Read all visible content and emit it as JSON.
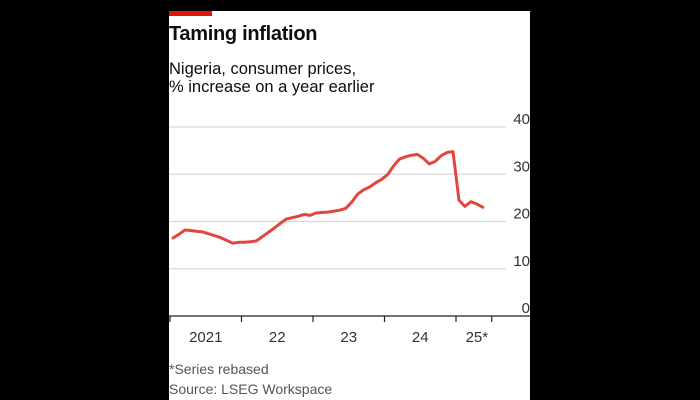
{
  "header": {
    "title": "Taming inflation",
    "subtitle_line1": "Nigeria, consumer prices,",
    "subtitle_line2": "% increase on a year earlier"
  },
  "footer": {
    "note": "*Series rebased",
    "source": "Source: LSEG Workspace"
  },
  "colors": {
    "accent": "#e3120b",
    "line": "#e3463d",
    "grid": "#d9d9d9"
  },
  "chart_data": {
    "type": "line",
    "title": "Taming inflation",
    "ylim": [
      0,
      40
    ],
    "yticks": [
      "0",
      "10",
      "20",
      "30",
      "40"
    ],
    "xtick_labels": [
      "2021",
      "22",
      "23",
      "24",
      "25*"
    ],
    "y_axis_side": "right",
    "grid": true,
    "x_start": "2021-01",
    "x_end": "2025-05",
    "series": [
      {
        "values": [
          16.5,
          17.3,
          18.2,
          18.1,
          17.9,
          17.8,
          17.4,
          17.0,
          16.6,
          16.0,
          15.4,
          15.6,
          15.6,
          15.7,
          15.9,
          16.8,
          17.7,
          18.6,
          19.6,
          20.5,
          20.8,
          21.1,
          21.5,
          21.3,
          21.8,
          21.9,
          22.0,
          22.2,
          22.4,
          22.8,
          24.1,
          25.8,
          26.7,
          27.3,
          28.2,
          28.9,
          29.9,
          31.7,
          33.2,
          33.7,
          34.0,
          34.2,
          33.4,
          32.2,
          32.7,
          33.9,
          34.6,
          34.8,
          24.5,
          23.2,
          24.2,
          23.7,
          23.0
        ]
      }
    ]
  }
}
